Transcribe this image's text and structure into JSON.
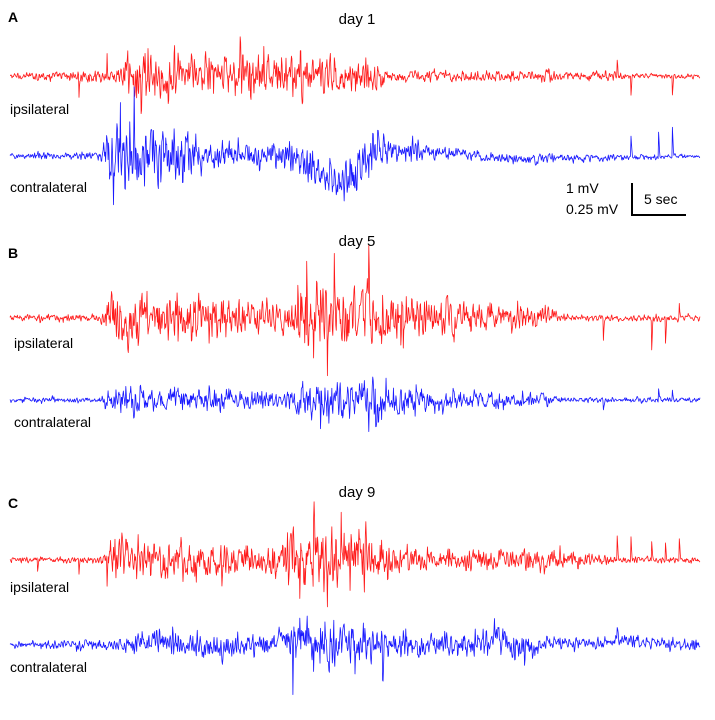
{
  "chart_data": [
    {
      "type": "line",
      "panel": "A",
      "title": "day 1",
      "series": [
        {
          "name": "ipsilateral",
          "color": "#ff1a1a",
          "segments": [
            [
              0,
              0.1
            ],
            [
              16,
              0.3
            ],
            [
              17,
              1.0
            ],
            [
              28,
              0.6
            ],
            [
              33,
              0.9
            ],
            [
              47,
              0.8
            ],
            [
              54,
              0.5
            ],
            [
              55,
              0.2
            ],
            [
              88,
              0.2
            ],
            [
              89,
              0.1
            ],
            [
              100,
              0.1
            ]
          ],
          "spikes": [
            [
              10,
              -0.8
            ],
            [
              14,
              1.2
            ],
            [
              17,
              1.1
            ],
            [
              18,
              -0.8
            ],
            [
              19,
              -1.1
            ],
            [
              20,
              1.0
            ],
            [
              21,
              -0.9
            ],
            [
              88,
              0.5
            ],
            [
              90,
              -0.6
            ],
            [
              96,
              -0.7
            ]
          ]
        },
        {
          "name": "contralateral",
          "color": "#1a1aff",
          "segments": [
            [
              0,
              0.1
            ],
            [
              13,
              0.1
            ],
            [
              15,
              1.0
            ],
            [
              23,
              0.9
            ],
            [
              30,
              0.4
            ],
            [
              37,
              0.3
            ],
            [
              45,
              0.6
            ],
            [
              53,
              0.6
            ],
            [
              62,
              0.2
            ],
            [
              100,
              0.05
            ]
          ],
          "spikes": [
            [
              15,
              -1.0
            ],
            [
              16,
              1.0
            ],
            [
              18,
              0.9
            ],
            [
              20,
              -0.8
            ],
            [
              22,
              0.7
            ],
            [
              52,
              -0.7
            ],
            [
              90,
              0.6
            ],
            [
              94,
              0.7
            ],
            [
              96,
              0.8
            ]
          ],
          "baseline": [
            [
              0,
              0
            ],
            [
              40,
              0
            ],
            [
              46,
              -0.5
            ],
            [
              48,
              -0.9
            ],
            [
              50,
              -0.6
            ],
            [
              52,
              0.1
            ],
            [
              58,
              0.2
            ],
            [
              66,
              0.1
            ],
            [
              72,
              -0.1
            ],
            [
              100,
              0
            ]
          ]
        }
      ],
      "scale_bar": {
        "voltage_ipsilateral": "1 mV",
        "voltage_contralateral": "0.25 mV",
        "time": "5 sec"
      }
    },
    {
      "type": "line",
      "panel": "B",
      "title": "day 5",
      "series": [
        {
          "name": "ipsilateral",
          "color": "#ff1a1a",
          "segments": [
            [
              0,
              0.1
            ],
            [
              13,
              0.1
            ],
            [
              15,
              0.8
            ],
            [
              32,
              0.5
            ],
            [
              40,
              0.4
            ],
            [
              42,
              1.0
            ],
            [
              55,
              0.9
            ],
            [
              62,
              0.6
            ],
            [
              78,
              0.3
            ],
            [
              80,
              0.1
            ],
            [
              100,
              0.1
            ]
          ],
          "spikes": [
            [
              43,
              1.8
            ],
            [
              44,
              -1.0
            ],
            [
              45,
              1.6
            ],
            [
              46,
              -1.2
            ],
            [
              47,
              1.5
            ],
            [
              49,
              -1.0
            ],
            [
              52,
              1.2
            ],
            [
              55,
              -0.9
            ],
            [
              57,
              -1.0
            ],
            [
              86,
              -0.6
            ],
            [
              93,
              -0.8
            ],
            [
              95,
              -0.7
            ],
            [
              97,
              0.4
            ]
          ]
        },
        {
          "name": "contralateral",
          "color": "#1a1aff",
          "segments": [
            [
              0,
              0.1
            ],
            [
              13,
              0.1
            ],
            [
              15,
              0.5
            ],
            [
              40,
              0.4
            ],
            [
              42,
              0.8
            ],
            [
              55,
              0.7
            ],
            [
              60,
              0.4
            ],
            [
              78,
              0.2
            ],
            [
              80,
              0.1
            ],
            [
              100,
              0.1
            ]
          ],
          "spikes": [
            [
              45,
              -1.0
            ],
            [
              46,
              0.7
            ],
            [
              52,
              -0.9
            ],
            [
              53,
              -1.5
            ],
            [
              77,
              0.4
            ],
            [
              86,
              -0.3
            ],
            [
              94,
              0.4
            ],
            [
              96,
              0.3
            ]
          ]
        }
      ]
    },
    {
      "type": "line",
      "panel": "C",
      "title": "day 9",
      "series": [
        {
          "name": "ipsilateral",
          "color": "#ff1a1a",
          "segments": [
            [
              0,
              0.1
            ],
            [
              13,
              0.1
            ],
            [
              15,
              0.7
            ],
            [
              38,
              0.5
            ],
            [
              41,
              1.0
            ],
            [
              51,
              0.9
            ],
            [
              55,
              0.5
            ],
            [
              65,
              0.3
            ],
            [
              75,
              0.4
            ],
            [
              82,
              0.3
            ],
            [
              88,
              0.1
            ],
            [
              100,
              0.1
            ]
          ],
          "spikes": [
            [
              4,
              -0.4
            ],
            [
              10,
              -0.4
            ],
            [
              14,
              -0.6
            ],
            [
              41,
              1.5
            ],
            [
              42,
              -1.2
            ],
            [
              44,
              1.4
            ],
            [
              46,
              -1.1
            ],
            [
              48,
              1.2
            ],
            [
              88,
              0.8
            ],
            [
              90,
              0.7
            ],
            [
              93,
              0.6
            ],
            [
              95,
              0.6
            ],
            [
              97,
              0.7
            ]
          ]
        },
        {
          "name": "contralateral",
          "color": "#1a1aff",
          "segments": [
            [
              0,
              0.1
            ],
            [
              15,
              0.2
            ],
            [
              20,
              0.4
            ],
            [
              40,
              0.4
            ],
            [
              42,
              0.8
            ],
            [
              50,
              0.7
            ],
            [
              55,
              0.4
            ],
            [
              74,
              0.5
            ],
            [
              78,
              0.3
            ],
            [
              82,
              0.2
            ],
            [
              100,
              0.2
            ]
          ],
          "spikes": [
            [
              41,
              -1.0
            ],
            [
              43,
              0.8
            ],
            [
              44,
              -1.2
            ],
            [
              45,
              0.9
            ],
            [
              47,
              -0.8
            ],
            [
              50,
              -1.3
            ],
            [
              54,
              -0.8
            ],
            [
              75,
              0.6
            ],
            [
              88,
              0.4
            ],
            [
              91,
              0.3
            ]
          ],
          "baseline": [
            [
              0,
              0
            ],
            [
              15,
              0
            ],
            [
              20,
              0.2
            ],
            [
              25,
              0
            ],
            [
              30,
              -0.1
            ],
            [
              40,
              0.1
            ],
            [
              60,
              0
            ],
            [
              68,
              0.1
            ],
            [
              70,
              0.3
            ],
            [
              72,
              0
            ],
            [
              75,
              -0.2
            ],
            [
              78,
              0.1
            ],
            [
              85,
              0
            ],
            [
              88,
              0.2
            ],
            [
              92,
              0.1
            ],
            [
              100,
              0
            ]
          ]
        }
      ]
    }
  ]
}
